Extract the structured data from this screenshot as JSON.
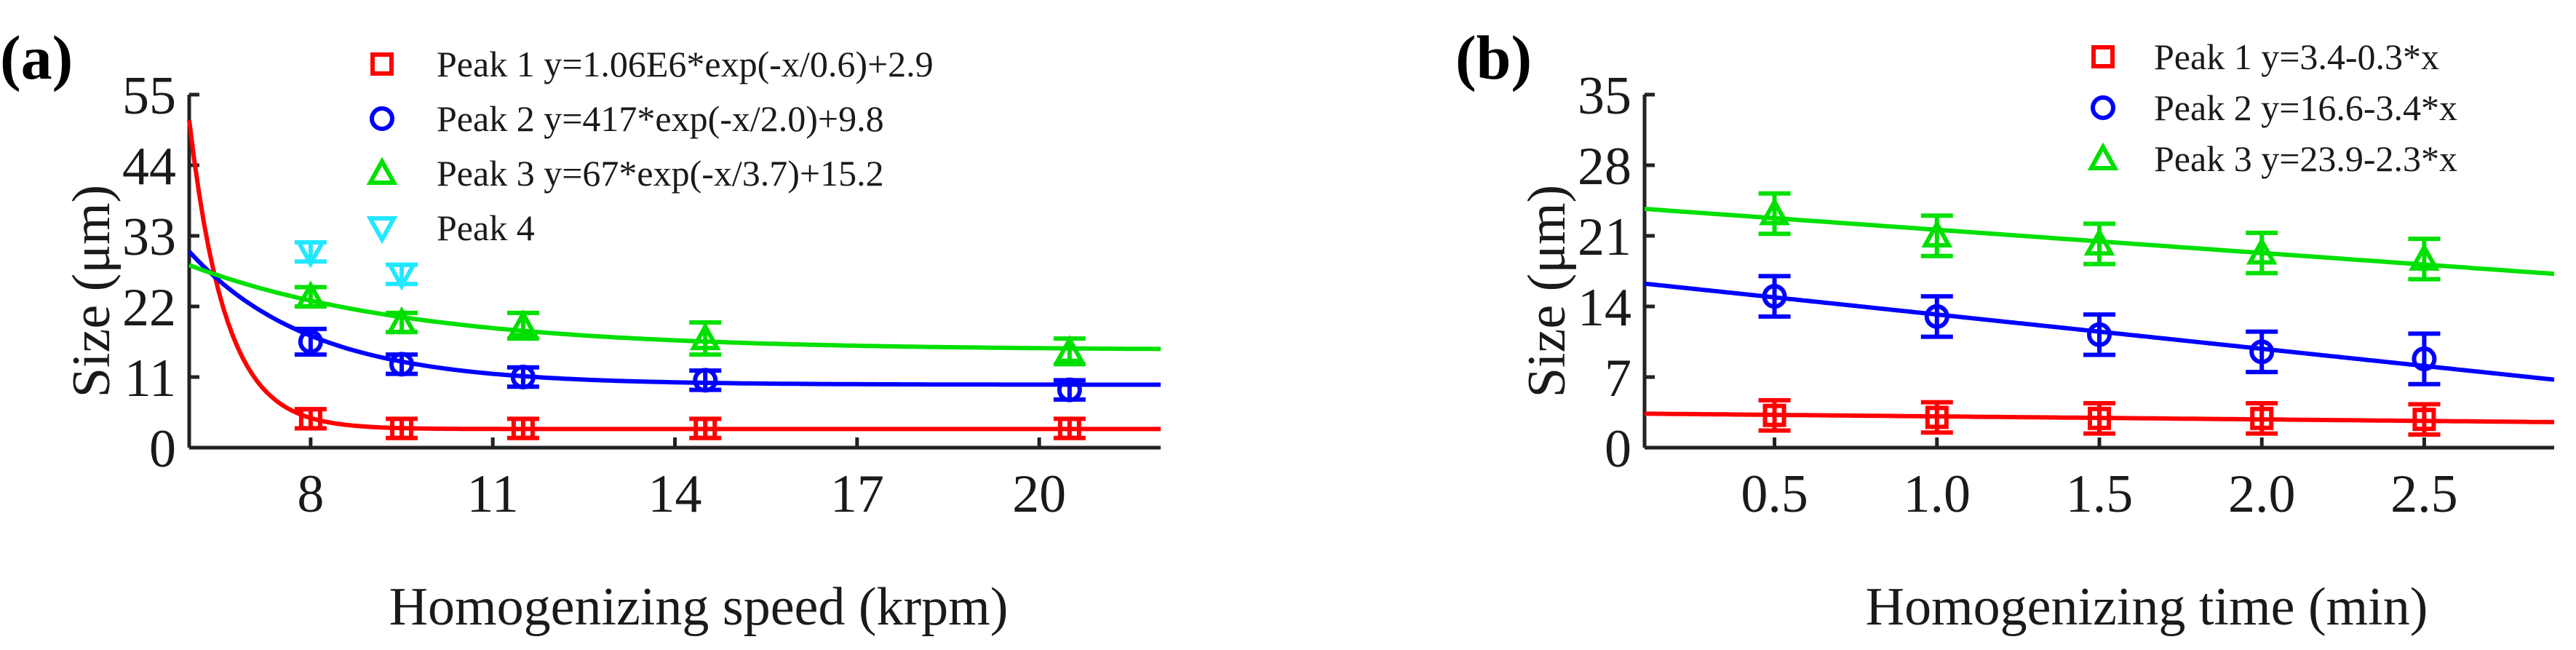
{
  "colors": {
    "peak1": "#ff0000",
    "peak2": "#0000ff",
    "peak3": "#00e000",
    "peak4": "#22e8ff",
    "axis": "#222222"
  },
  "chart_data": [
    {
      "type": "scatter",
      "panel_label": "(a)",
      "xlabel": "Homogenizing speed (krpm)",
      "ylabel": "Size (μm)",
      "xlim": [
        6.0,
        22.0
      ],
      "ylim": [
        0,
        55
      ],
      "xticks": [
        8,
        11,
        14,
        17,
        20
      ],
      "xtick_labels": [
        "8",
        "11",
        "14",
        "17",
        "20"
      ],
      "yticks": [
        0,
        11,
        22,
        33,
        44,
        55
      ],
      "ytick_labels": [
        "0",
        "11",
        "22",
        "33",
        "44",
        "55"
      ],
      "legend_position": "top-right",
      "series": [
        {
          "name": "Peak 1 y=1.06E6*exp(-x/0.6)+2.9",
          "marker": "square",
          "color": "#ff0000",
          "x": [
            8.0,
            9.5,
            11.5,
            14.5,
            20.5
          ],
          "y": [
            4.5,
            3.0,
            3.0,
            3.0,
            3.0
          ],
          "yerr": [
            1.5,
            1.5,
            1.5,
            1.5,
            1.5
          ],
          "fit": {
            "kind": "exp",
            "a": 1060000,
            "tau": 0.6,
            "c": 2.9
          }
        },
        {
          "name": "Peak 2 y=417*exp(-x/2.0)+9.8",
          "marker": "circle",
          "color": "#0000ff",
          "x": [
            8.0,
            9.5,
            11.5,
            14.5,
            20.5
          ],
          "y": [
            16.5,
            13.0,
            11.0,
            10.5,
            9.0
          ],
          "yerr": [
            2.0,
            1.5,
            1.5,
            1.5,
            1.5
          ],
          "fit": {
            "kind": "exp",
            "a": 417,
            "tau": 2.0,
            "c": 9.8
          }
        },
        {
          "name": "Peak 3 y=67*exp(-x/3.7)+15.2",
          "marker": "triangle-up",
          "color": "#00e000",
          "x": [
            8.0,
            9.5,
            11.5,
            14.5,
            20.5
          ],
          "y": [
            23.5,
            19.5,
            19.0,
            17.0,
            15.0
          ],
          "yerr": [
            1.5,
            1.5,
            2.0,
            2.5,
            2.0
          ],
          "fit": {
            "kind": "exp",
            "a": 67,
            "tau": 3.7,
            "c": 15.2
          }
        },
        {
          "name": "Peak 4",
          "marker": "triangle-down",
          "color": "#22e8ff",
          "x": [
            8.0,
            9.5
          ],
          "y": [
            30.5,
            27.0
          ],
          "yerr": [
            1.5,
            1.5
          ],
          "fit": null
        }
      ]
    },
    {
      "type": "scatter",
      "panel_label": "(b)",
      "xlabel": "Homogenizing time (min)",
      "ylabel": "Size (μm)",
      "xlim": [
        0.1,
        2.9
      ],
      "ylim": [
        0,
        35
      ],
      "xticks": [
        0.5,
        1.0,
        1.5,
        2.0,
        2.5
      ],
      "xtick_labels": [
        "0.5",
        "1.0",
        "1.5",
        "2.0",
        "2.5"
      ],
      "yticks": [
        0,
        7,
        14,
        21,
        28,
        35
      ],
      "ytick_labels": [
        "0",
        "7",
        "14",
        "21",
        "28",
        "35"
      ],
      "legend_position": "top-right",
      "series": [
        {
          "name": "Peak 1 y=3.4-0.3*x",
          "marker": "square",
          "color": "#ff0000",
          "x": [
            0.5,
            1.0,
            1.5,
            2.0,
            2.5
          ],
          "y": [
            3.2,
            3.0,
            2.9,
            2.9,
            2.8
          ],
          "yerr": [
            1.5,
            1.5,
            1.5,
            1.5,
            1.5
          ],
          "fit": {
            "kind": "linear",
            "intercept": 3.4,
            "slope": -0.3
          }
        },
        {
          "name": "Peak 2 y=16.6-3.4*x",
          "marker": "circle",
          "color": "#0000ff",
          "x": [
            0.5,
            1.0,
            1.5,
            2.0,
            2.5
          ],
          "y": [
            15.0,
            13.0,
            11.2,
            9.5,
            8.8
          ],
          "yerr": [
            2.0,
            2.0,
            2.0,
            2.0,
            2.5
          ],
          "fit": {
            "kind": "linear",
            "intercept": 16.6,
            "slope": -3.4
          }
        },
        {
          "name": "Peak 3 y=23.9-2.3*x",
          "marker": "triangle-up",
          "color": "#00e000",
          "x": [
            0.5,
            1.0,
            1.5,
            2.0,
            2.5
          ],
          "y": [
            23.2,
            21.0,
            20.2,
            19.3,
            18.7
          ],
          "yerr": [
            2.0,
            2.0,
            2.0,
            2.0,
            2.0
          ],
          "fit": {
            "kind": "linear",
            "intercept": 23.9,
            "slope": -2.3
          }
        }
      ]
    }
  ]
}
